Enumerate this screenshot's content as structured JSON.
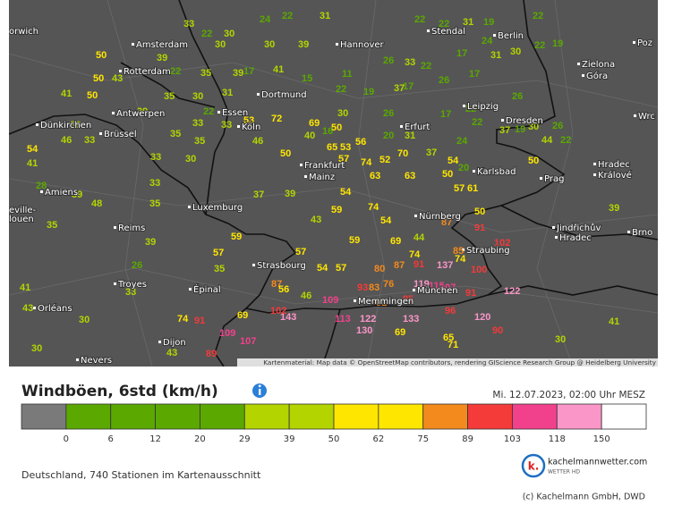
{
  "map": {
    "cities": [
      "orwich",
      "Amsterdam",
      "Rotterdam",
      "Antwerpen",
      "Brüssel",
      "Dünkirchen",
      "Amiens",
      "eville-",
      "louen",
      "Reims",
      "Troyes",
      "Épinal",
      "Dijon",
      "Nevers",
      "Orléans",
      "Köln",
      "Essen",
      "Dortmund",
      "Hannover",
      "Stendal",
      "Berlin",
      "Zielona",
      "Góra",
      "Leipzig",
      "Erfurt",
      "Dresden",
      "Frankfurt",
      "Mainz",
      "Karlsbad",
      "Prag",
      "Hradec",
      "Králové",
      "Luxemburg",
      "Nürnberg",
      "Jindřichův",
      "Hradec",
      "Brno",
      "Strasbourg",
      "Straubing",
      "München",
      "Memmingen",
      "Poz",
      "Wrc"
    ],
    "stations": [
      33,
      22,
      30,
      24,
      22,
      31,
      22,
      22,
      31,
      19,
      22,
      50,
      39,
      30,
      30,
      39,
      26,
      33,
      22,
      24,
      17,
      31,
      30,
      22,
      19,
      50,
      43,
      22,
      35,
      39,
      17,
      41,
      15,
      11,
      22,
      19,
      37,
      17,
      26,
      17,
      26,
      41,
      50,
      35,
      30,
      31,
      39,
      22,
      33,
      33,
      53,
      72,
      69,
      50,
      30,
      26,
      20,
      31,
      17,
      22,
      22,
      37,
      19,
      30,
      26,
      39,
      46,
      33,
      35,
      35,
      46,
      40,
      16,
      56,
      24,
      44,
      22,
      54,
      41,
      33,
      30,
      50,
      65,
      53,
      57,
      74,
      52,
      70,
      37,
      54,
      20,
      50,
      28,
      39,
      48,
      33,
      35,
      37,
      39,
      54,
      63,
      63,
      50,
      57,
      61,
      74,
      59,
      50,
      39,
      35,
      39,
      57,
      59,
      43,
      54,
      59,
      87,
      91,
      44,
      69,
      57,
      74,
      85,
      102,
      87,
      91,
      137,
      74,
      100,
      80,
      54,
      57,
      35,
      87,
      56,
      93,
      83,
      76,
      119,
      115,
      107,
      91,
      122,
      46,
      109,
      81,
      95,
      41,
      26,
      33,
      43,
      30,
      74,
      91,
      69,
      143,
      102,
      113,
      122,
      133,
      96,
      120,
      90,
      30,
      43,
      89,
      109,
      107,
      130,
      69,
      65,
      71,
      30,
      41
    ],
    "attribution": "Kartenmaterial: Map data © OpenStreetMap contributors, rendering GIScience Research Group @ Heidelberg University"
  },
  "header": {
    "title": "Windböen, 6std (km/h)",
    "timestamp": "Mi. 12.07.2023, 02:00 Uhr MESZ"
  },
  "legend": {
    "ticks": [
      0,
      6,
      12,
      20,
      29,
      39,
      50,
      62,
      75,
      89,
      103,
      118,
      150
    ],
    "colors": [
      "#7a7a7a",
      "#5aa800",
      "#5aa800",
      "#5aa800",
      "#5aa800",
      "#b4d400",
      "#b4d400",
      "#ffe600",
      "#ffe600",
      "#f28a1e",
      "#f53a3a",
      "#f2418c",
      "#fb96c8",
      "#ffffff"
    ]
  },
  "footer": {
    "stations_note": "Deutschland, 740 Stationen im Kartenausschnitt",
    "logo": {
      "mark": "k.",
      "name": "kachelmannwetter.com",
      "tagline": "WETTER HD"
    },
    "copyright": "(c) Kachelmann GmbH, DWD"
  }
}
